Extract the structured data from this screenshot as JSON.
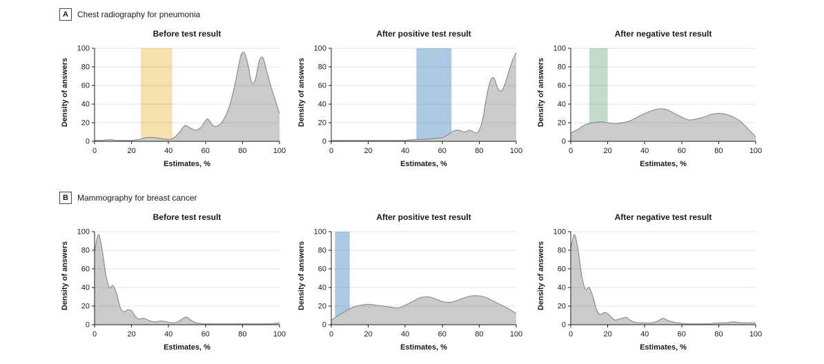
{
  "panels": [
    {
      "label": "A",
      "title": "Chest radiography for pneumonia"
    },
    {
      "label": "B",
      "title": "Mammography for breast cancer"
    }
  ],
  "colors": {
    "area_fill": "#cbcbcb",
    "area_stroke": "#8e8e8e",
    "axis": "#1a1a1a",
    "grid": "#777777",
    "band_yellow": "#f6e0ae",
    "band_blue": "#abc9e3",
    "band_green": "#c3dcc9"
  },
  "chart_data": [
    {
      "type": "area",
      "panel": "A",
      "title": "Before test result",
      "xlabel": "Estimates, %",
      "ylabel": "Density of answers",
      "xlim": [
        0,
        100
      ],
      "ylim": [
        0,
        100
      ],
      "xticks": [
        0,
        20,
        40,
        60,
        80,
        100
      ],
      "yticks": [
        0,
        20,
        40,
        60,
        80,
        100
      ],
      "band": {
        "x0": 25,
        "x1": 42,
        "color": "#f6e0ae"
      },
      "x": [
        0,
        4,
        8,
        12,
        16,
        20,
        24,
        28,
        32,
        36,
        40,
        43,
        46,
        49,
        52,
        55,
        58,
        61,
        64,
        67,
        70,
        73,
        76,
        79,
        81,
        83,
        85,
        87,
        89,
        91,
        93,
        96,
        100
      ],
      "y": [
        1,
        1,
        2,
        1,
        1,
        1,
        2,
        4,
        4,
        3,
        2,
        4,
        10,
        17,
        14,
        12,
        16,
        24,
        17,
        17,
        24,
        38,
        62,
        91,
        95,
        82,
        63,
        67,
        86,
        90,
        76,
        55,
        30
      ]
    },
    {
      "type": "area",
      "panel": "A",
      "title": "After positive test result",
      "xlabel": "Estimates, %",
      "ylabel": "Density of answers",
      "xlim": [
        0,
        100
      ],
      "ylim": [
        0,
        100
      ],
      "xticks": [
        0,
        20,
        40,
        60,
        80,
        100
      ],
      "yticks": [
        0,
        20,
        40,
        60,
        80,
        100
      ],
      "band": {
        "x0": 46,
        "x1": 65,
        "color": "#abc9e3"
      },
      "x": [
        0,
        5,
        10,
        15,
        20,
        25,
        30,
        35,
        40,
        45,
        50,
        55,
        60,
        63,
        66,
        69,
        72,
        75,
        78,
        80,
        82,
        84,
        86,
        88,
        90,
        92,
        94,
        96,
        98,
        100
      ],
      "y": [
        1,
        1,
        1,
        1,
        1,
        1,
        1,
        1,
        1,
        2,
        2,
        3,
        4,
        7,
        11,
        12,
        10,
        12,
        9,
        12,
        25,
        48,
        65,
        68,
        57,
        54,
        62,
        75,
        87,
        95
      ]
    },
    {
      "type": "area",
      "panel": "A",
      "title": "After negative test result",
      "xlabel": "Estimates, %",
      "ylabel": "Density of answers",
      "xlim": [
        0,
        100
      ],
      "ylim": [
        0,
        100
      ],
      "xticks": [
        0,
        20,
        40,
        60,
        80,
        100
      ],
      "yticks": [
        0,
        20,
        40,
        60,
        80,
        100
      ],
      "band": {
        "x0": 10,
        "x1": 20,
        "color": "#c3dcc9"
      },
      "x": [
        0,
        4,
        8,
        12,
        16,
        20,
        24,
        28,
        32,
        36,
        40,
        44,
        48,
        52,
        56,
        60,
        64,
        68,
        72,
        76,
        80,
        84,
        88,
        92,
        96,
        100
      ],
      "y": [
        9,
        13,
        18,
        20,
        21,
        20,
        19,
        20,
        22,
        26,
        30,
        33,
        35,
        34,
        30,
        26,
        23,
        24,
        26,
        29,
        30,
        29,
        26,
        21,
        13,
        5
      ]
    },
    {
      "type": "area",
      "panel": "B",
      "title": "Before test result",
      "xlabel": "Estimates, %",
      "ylabel": "Density of answers",
      "xlim": [
        0,
        100
      ],
      "ylim": [
        0,
        100
      ],
      "xticks": [
        0,
        20,
        40,
        60,
        80,
        100
      ],
      "yticks": [
        0,
        20,
        40,
        60,
        80,
        100
      ],
      "band": null,
      "x": [
        0,
        2,
        4,
        6,
        8,
        10,
        12,
        14,
        16,
        18,
        20,
        22,
        24,
        26,
        28,
        30,
        33,
        36,
        39,
        42,
        45,
        48,
        50,
        52,
        55,
        60,
        65,
        70,
        75,
        80,
        85,
        90,
        95,
        100
      ],
      "y": [
        78,
        97,
        82,
        55,
        40,
        42,
        33,
        18,
        14,
        16,
        15,
        9,
        6,
        7,
        6,
        4,
        3,
        4,
        3,
        2,
        3,
        7,
        8,
        5,
        2,
        1,
        1,
        1,
        1,
        1,
        1,
        1,
        1,
        2
      ]
    },
    {
      "type": "area",
      "panel": "B",
      "title": "After positive test result",
      "xlabel": "Estimates, %",
      "ylabel": "Density of answers",
      "xlim": [
        0,
        100
      ],
      "ylim": [
        0,
        100
      ],
      "xticks": [
        0,
        20,
        40,
        60,
        80,
        100
      ],
      "yticks": [
        0,
        20,
        40,
        60,
        80,
        100
      ],
      "band": {
        "x0": 2,
        "x1": 10,
        "color": "#abc9e3"
      },
      "x": [
        0,
        4,
        8,
        12,
        16,
        20,
        24,
        28,
        32,
        36,
        40,
        44,
        48,
        52,
        56,
        60,
        64,
        68,
        72,
        76,
        80,
        84,
        88,
        92,
        96,
        100
      ],
      "y": [
        5,
        10,
        15,
        19,
        21,
        22,
        21,
        20,
        19,
        18,
        21,
        25,
        29,
        30,
        28,
        25,
        24,
        26,
        29,
        31,
        31,
        29,
        25,
        21,
        17,
        12
      ]
    },
    {
      "type": "area",
      "panel": "B",
      "title": "After negative test result",
      "xlabel": "Estimates, %",
      "ylabel": "Density of answers",
      "xlim": [
        0,
        100
      ],
      "ylim": [
        0,
        100
      ],
      "xticks": [
        0,
        20,
        40,
        60,
        80,
        100
      ],
      "yticks": [
        0,
        20,
        40,
        60,
        80,
        100
      ],
      "band": null,
      "x": [
        0,
        2,
        4,
        6,
        8,
        10,
        12,
        14,
        16,
        18,
        20,
        22,
        24,
        26,
        28,
        30,
        32,
        34,
        37,
        40,
        44,
        47,
        50,
        52,
        55,
        58,
        62,
        66,
        70,
        75,
        80,
        84,
        88,
        92,
        96,
        100
      ],
      "y": [
        82,
        97,
        80,
        52,
        38,
        40,
        30,
        16,
        11,
        13,
        12,
        8,
        5,
        6,
        7,
        8,
        5,
        3,
        2,
        2,
        2,
        4,
        7,
        5,
        3,
        2,
        1,
        1,
        1,
        1,
        2,
        2,
        3,
        2,
        2,
        2
      ]
    }
  ]
}
